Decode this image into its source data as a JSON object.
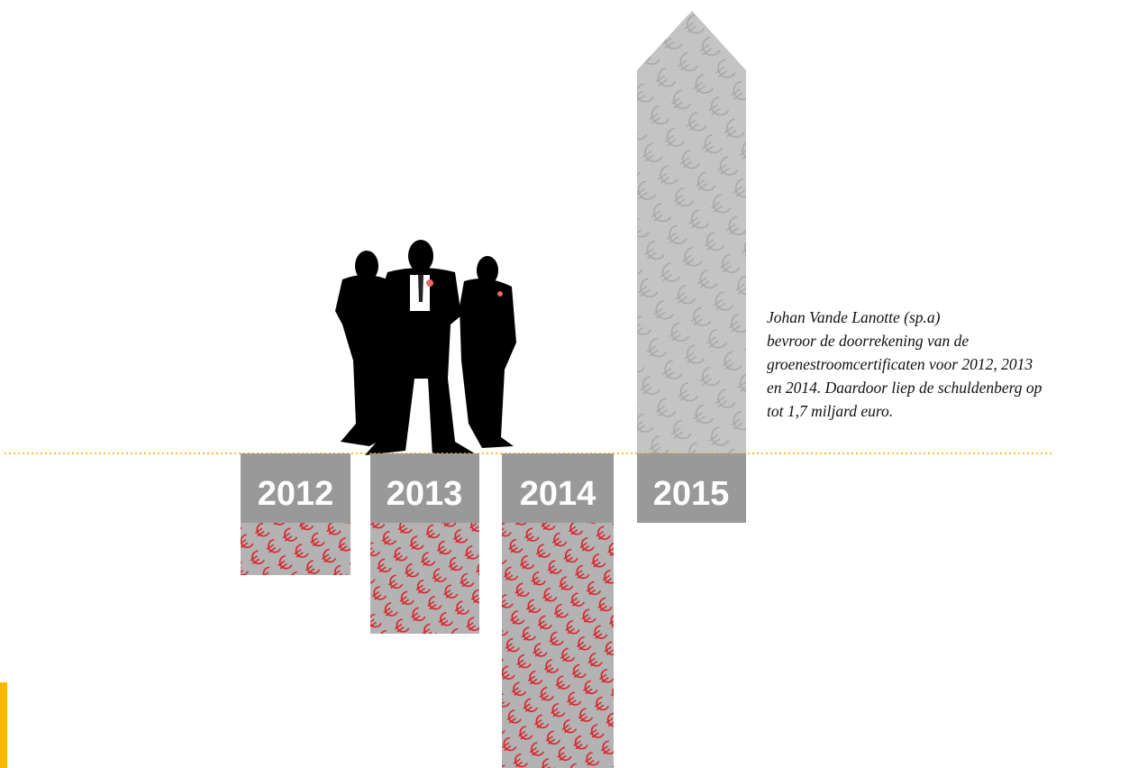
{
  "years": [
    "2012",
    "2013",
    "2014",
    "2015"
  ],
  "caption": [
    "Johan Vande Lanotte (sp.a)",
    "bevroor de doorrekening van de",
    "groenestroomcertificaten voor 2012, 2013",
    "en 2014. Daardoor liep de schuldenberg op",
    "tot 1,7 miljard euro."
  ]
}
